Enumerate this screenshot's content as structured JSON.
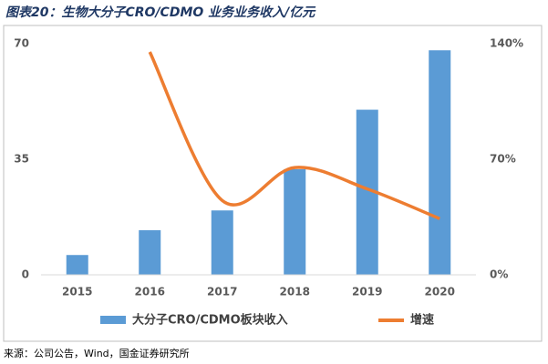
{
  "chart_data": {
    "type": "bar",
    "title": "图表20：生物大分子CRO/CDMO 业务业务收入/亿元",
    "source": "来源：公司公告，Wind，国金证券研究所",
    "categories": [
      "2015",
      "2016",
      "2017",
      "2018",
      "2019",
      "2020"
    ],
    "series": [
      {
        "name": "大分子CRO/CDMO板块收入",
        "type": "bar",
        "color": "#5b9bd5",
        "values": [
          6,
          13.5,
          19.5,
          32,
          50,
          68
        ]
      },
      {
        "name": "增速",
        "type": "line",
        "axis": "y2",
        "color": "#ed7d31",
        "values": [
          null,
          135,
          45,
          65,
          52,
          34
        ]
      }
    ],
    "ylim": [
      0,
      70
    ],
    "yticks": [
      0,
      35,
      70
    ],
    "y2lim": [
      0,
      140
    ],
    "y2ticks": [
      {
        "value": 0,
        "label": "0%"
      },
      {
        "value": 70,
        "label": "70%"
      },
      {
        "value": 140,
        "label": "140%"
      }
    ],
    "grid": false,
    "legend": "bottom"
  }
}
